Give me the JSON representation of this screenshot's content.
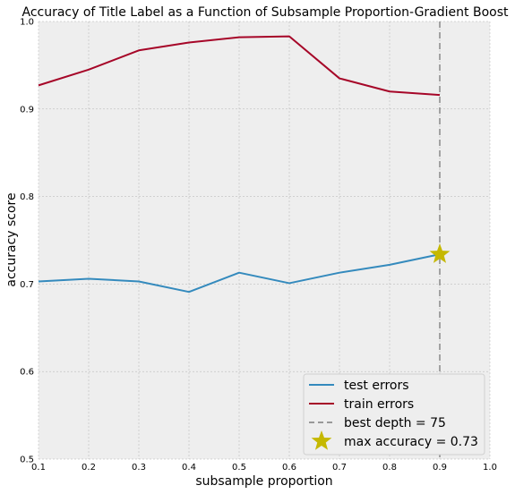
{
  "chart_data": {
    "type": "line",
    "title": "Accuracy of Title Label as a Function of Subsample Proportion-Gradient Boost",
    "xlabel": "subsample proportion",
    "ylabel": "accuracy score",
    "xlim": [
      0.1,
      1.0
    ],
    "ylim": [
      0.5,
      1.0
    ],
    "xticks": [
      "0.1",
      "0.2",
      "0.3",
      "0.4",
      "0.5",
      "0.6",
      "0.7",
      "0.8",
      "0.9",
      "1.0"
    ],
    "yticks": [
      "0.5",
      "0.6",
      "0.7",
      "0.8",
      "0.9",
      "1.0"
    ],
    "grid": true,
    "legend_position": "lower-right",
    "x": [
      0.1,
      0.2,
      0.3,
      0.4,
      0.5,
      0.6,
      0.7,
      0.8,
      0.9
    ],
    "series": [
      {
        "name": "test errors",
        "color": "#348ABD",
        "values": [
          0.703,
          0.706,
          0.703,
          0.691,
          0.713,
          0.701,
          0.713,
          0.722,
          0.734
        ]
      },
      {
        "name": "train errors",
        "color": "#A60628",
        "values": [
          0.927,
          0.945,
          0.967,
          0.976,
          0.982,
          0.983,
          0.935,
          0.92,
          0.916
        ]
      }
    ],
    "reference_line": {
      "label": "best depth = 75",
      "x": 0.9,
      "color": "#999999",
      "style": "dashed"
    },
    "highlight_point": {
      "label": "max accuracy = 0.73",
      "x": 0.9,
      "y": 0.734,
      "color": "#C5B800",
      "marker": "star"
    }
  }
}
